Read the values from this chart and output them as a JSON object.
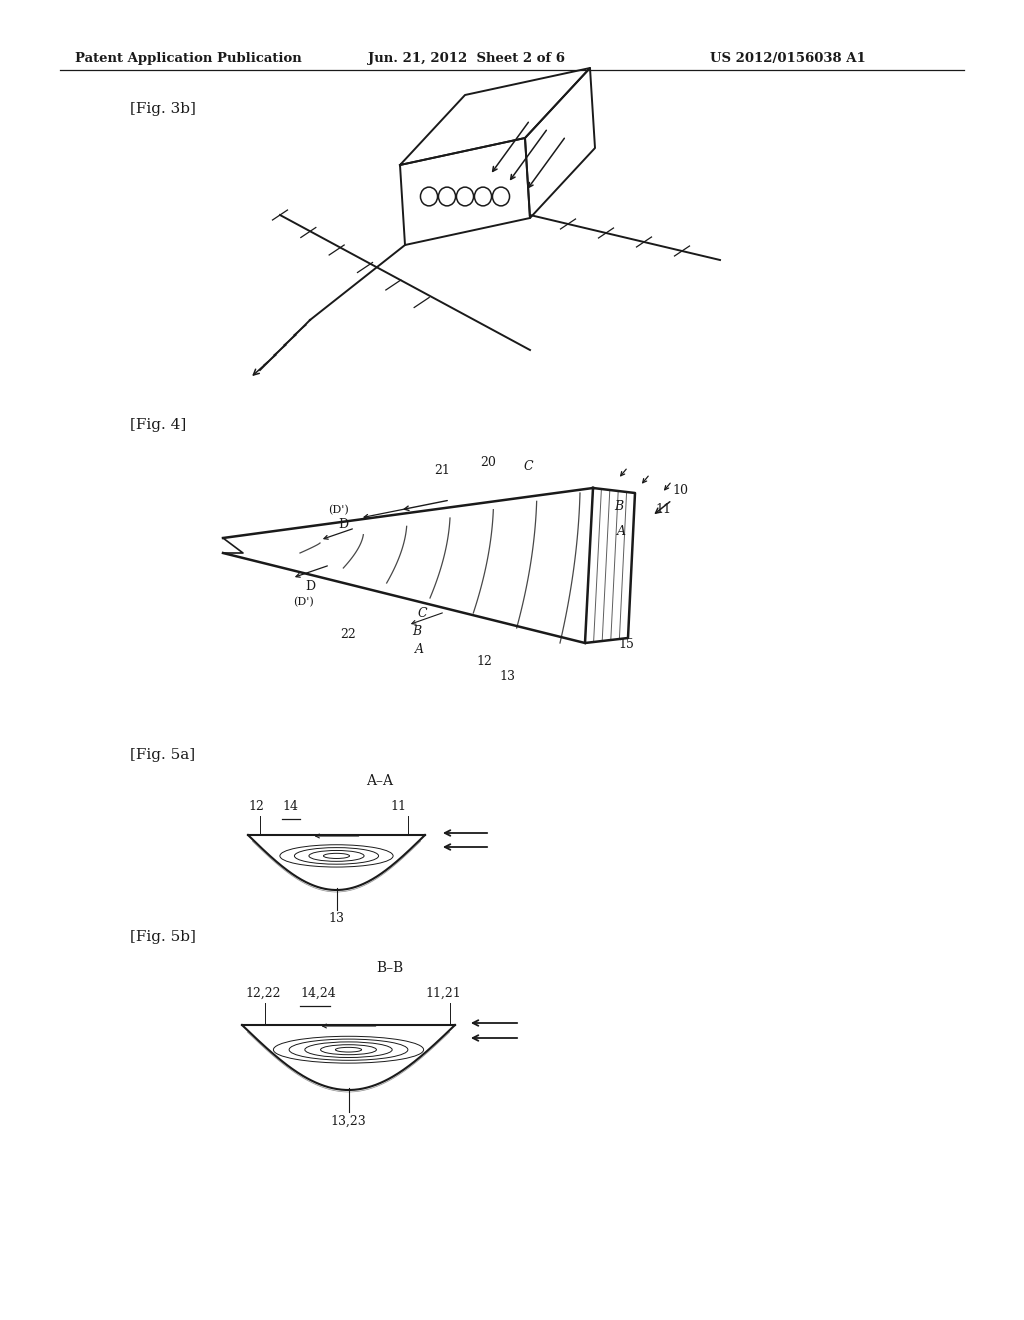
{
  "bg_color": "#ffffff",
  "line_color": "#1a1a1a",
  "header_left": "Patent Application Publication",
  "header_mid": "Jun. 21, 2012  Sheet 2 of 6",
  "header_right": "US 2012/0156038 A1",
  "fig_labels": [
    "[Fig. 3b]",
    "[Fig. 4]",
    "[Fig. 5a]",
    "[Fig. 5b]"
  ]
}
